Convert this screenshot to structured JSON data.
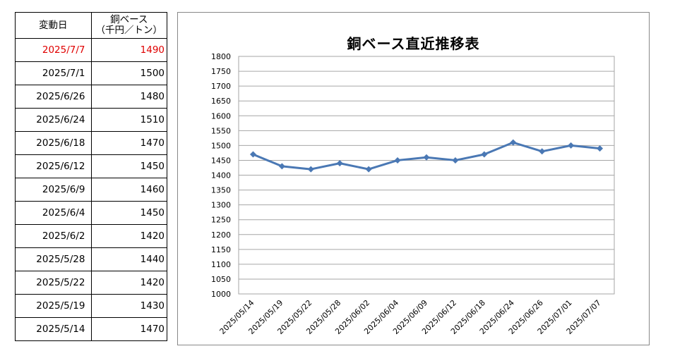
{
  "table": {
    "header": {
      "date": "変動日",
      "price_line1": "銅ベース",
      "price_line2": "（千円／トン）"
    },
    "rows": [
      {
        "date": "2025/7/7",
        "price": "1490"
      },
      {
        "date": "2025/7/1",
        "price": "1500"
      },
      {
        "date": "2025/6/26",
        "price": "1480"
      },
      {
        "date": "2025/6/24",
        "price": "1510"
      },
      {
        "date": "2025/6/18",
        "price": "1470"
      },
      {
        "date": "2025/6/12",
        "price": "1450"
      },
      {
        "date": "2025/6/9",
        "price": "1460"
      },
      {
        "date": "2025/6/4",
        "price": "1450"
      },
      {
        "date": "2025/6/2",
        "price": "1420"
      },
      {
        "date": "2025/5/28",
        "price": "1440"
      },
      {
        "date": "2025/5/22",
        "price": "1420"
      },
      {
        "date": "2025/5/19",
        "price": "1430"
      },
      {
        "date": "2025/5/14",
        "price": "1470"
      }
    ]
  },
  "colors": {
    "latest_row": "#e00000",
    "series_line": "#4a78b4",
    "grid": "#a6a6a6"
  },
  "chart_data": {
    "type": "line",
    "title": "銅ベース直近推移表",
    "categories": [
      "2025/05/14",
      "2025/05/19",
      "2025/05/22",
      "2025/05/28",
      "2025/06/02",
      "2025/06/04",
      "2025/06/09",
      "2025/06/12",
      "2025/06/18",
      "2025/06/24",
      "2025/06/26",
      "2025/07/01",
      "2025/07/07"
    ],
    "series": [
      {
        "values": [
          1470,
          1430,
          1420,
          1440,
          1420,
          1450,
          1460,
          1450,
          1470,
          1510,
          1480,
          1500,
          1490
        ]
      }
    ],
    "ylim": [
      1000,
      1800
    ],
    "ytick_step": 50,
    "grid": "horizontal",
    "marker": "diamond",
    "legend": "none",
    "xlabel": "",
    "ylabel": ""
  }
}
